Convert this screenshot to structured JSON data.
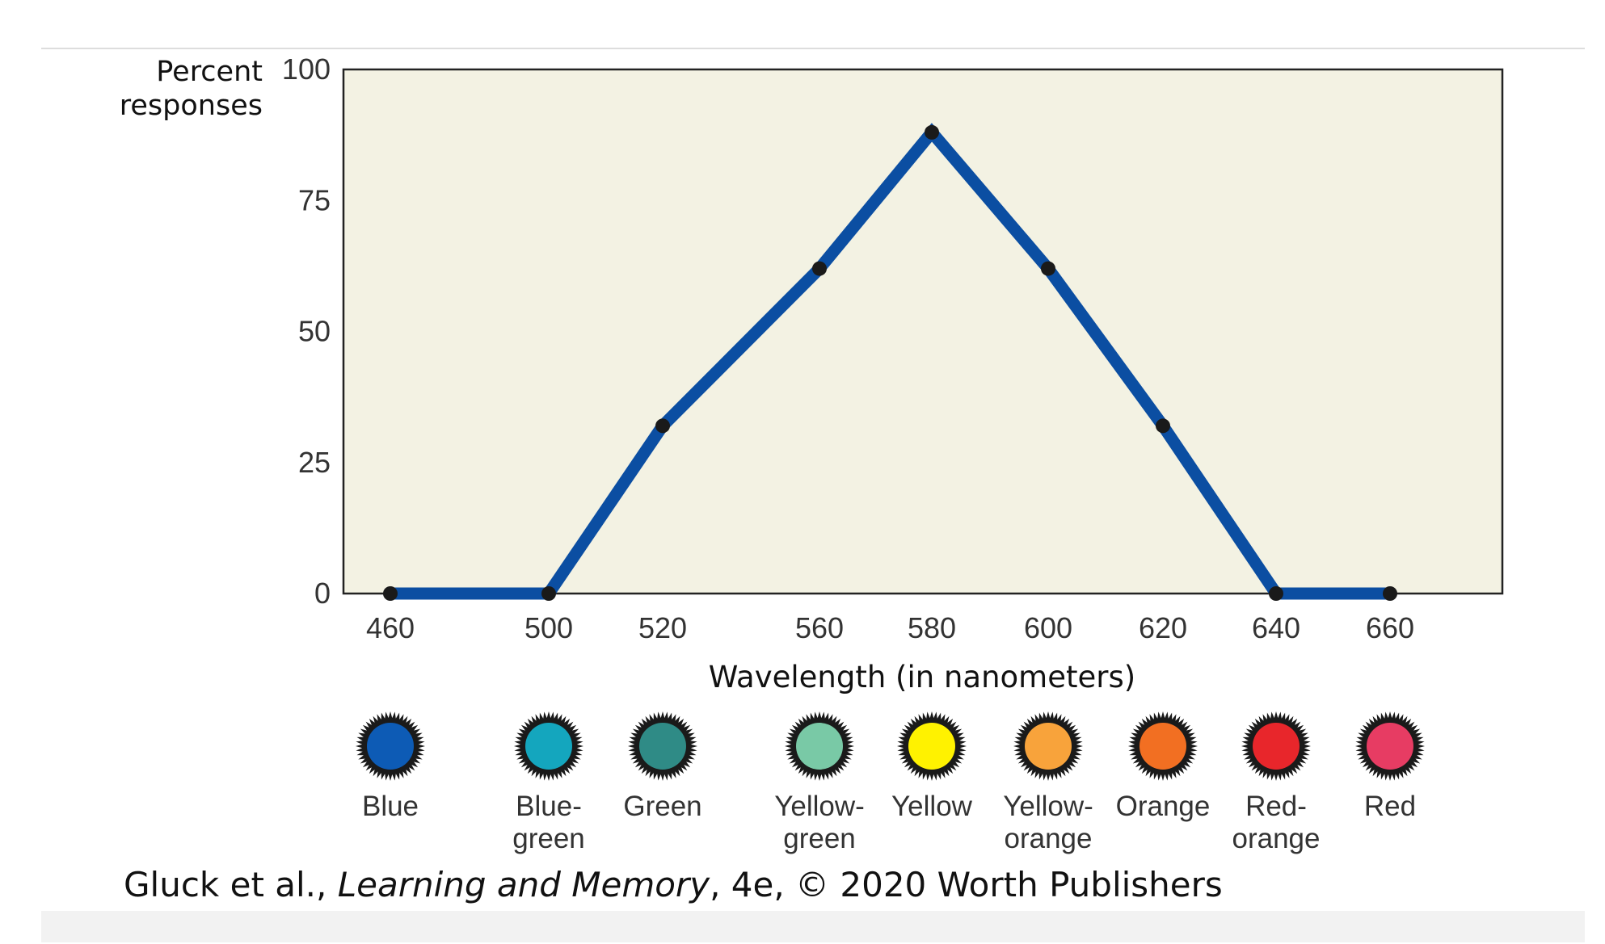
{
  "chart_data": {
    "type": "line",
    "title": "",
    "xlabel": "Wavelength (in nanometers)",
    "ylabel": [
      "Percent",
      "responses"
    ],
    "x_ticks": [
      "460",
      "500",
      "520",
      "560",
      "580",
      "600",
      "620",
      "640",
      "660"
    ],
    "y_ticks": [
      "0",
      "25",
      "50",
      "75",
      "100"
    ],
    "ylim": [
      0,
      100
    ],
    "grid": false,
    "plot_background": "#f3f2e3",
    "series": [
      {
        "color": "#0b4ea2",
        "x": [
          460,
          500,
          520,
          560,
          580,
          600,
          620,
          640,
          660
        ],
        "y": [
          0,
          0,
          32,
          62,
          88,
          62,
          32,
          0,
          0
        ]
      }
    ]
  },
  "color_swatches": [
    {
      "label": [
        "Blue"
      ],
      "color": "#0d5bb5"
    },
    {
      "label": [
        "Blue-",
        "green"
      ],
      "color": "#14a6be"
    },
    {
      "label": [
        "Green"
      ],
      "color": "#2f8b86"
    },
    {
      "label": [
        "Yellow-",
        "green"
      ],
      "color": "#79c9a6"
    },
    {
      "label": [
        "Yellow"
      ],
      "color": "#fff200"
    },
    {
      "label": [
        "Yellow-",
        "orange"
      ],
      "color": "#f8a33b"
    },
    {
      "label": [
        "Orange"
      ],
      "color": "#f26f22"
    },
    {
      "label": [
        "Red-",
        "orange"
      ],
      "color": "#e8262b"
    },
    {
      "label": [
        "Red"
      ],
      "color": "#e73c63"
    }
  ],
  "caption": {
    "authors": "Gluck et al., ",
    "book": "Learning and Memory",
    "rest": ", 4e, © 2020 Worth Publishers"
  }
}
